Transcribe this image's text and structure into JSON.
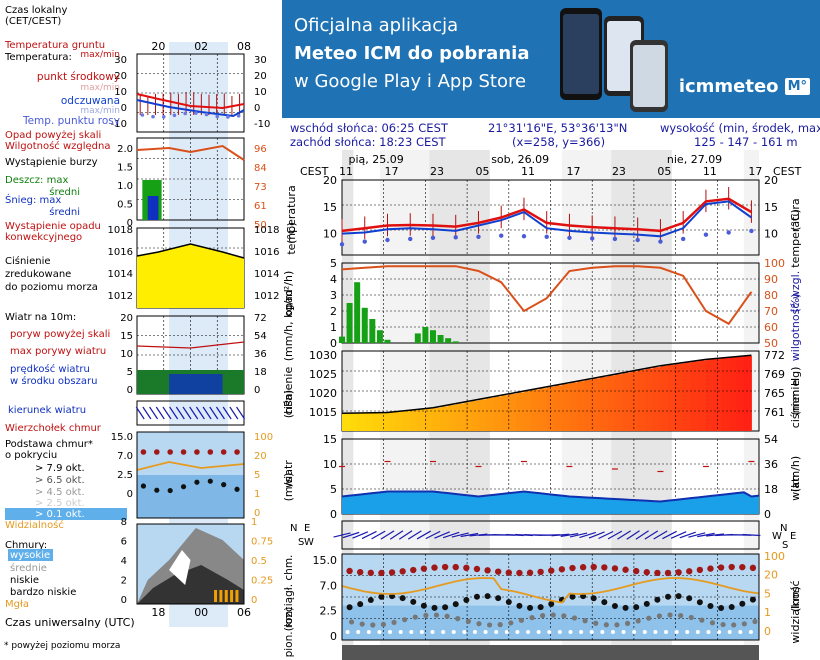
{
  "banner": {
    "line1": "Oficjalna aplikacja",
    "line2": "Meteo ICM do pobrania",
    "line3": "w Google Play i App Store",
    "logo": "icmmeteo",
    "logo_mark": "M°",
    "bg_color": "#1f72b4"
  },
  "location": {
    "sunrise": "wschód słońca: 06:25 CEST",
    "sunset": "zachód słońca: 18:23 CEST",
    "coords": "21°31'16\"E, 53°36'13\"N",
    "grid": "(x=258,  y=366)",
    "height_label": "wysokość (min, środek, max)",
    "height_values": "125 - 147 - 161 m"
  },
  "legend": {
    "local_time": "Czas lokalny\n(CET/CEST)",
    "local_ticks": [
      "20",
      "02",
      "08"
    ],
    "soil_temp": "Temperatura gruntu",
    "maxmin": "max/min",
    "temperature": "Temperatura:",
    "midpoint": "punkt środkowy",
    "temp_maxmin": "max/min",
    "feels_like": "odczuwana",
    "feels_maxmin": "max/min",
    "dew_point": "Temp. punktu rosy",
    "precip_above": "Opad powyżej skali",
    "humidity": "Wilgotność względna",
    "storm": "Wystąpienie burzy",
    "rain_max": "Deszcz: max",
    "rain_mean": "średni",
    "snow_max": "Śnieg: max",
    "snow_mean": "średni",
    "conv_precip": "Wystąpienie opadu\nkonwekcyjnego",
    "pressure": "Ciśnienie\nzredukowane\ndo poziomu morza",
    "wind_title": "Wiatr na 10m:",
    "gust_above": "poryw powyżej skali",
    "max_gust": "max porywy wiatru",
    "wind_speed": "prędkość wiatru\nw środku obszaru",
    "wind_dir": "kierunek wiatru",
    "cloud_top": "Wierzchołek chmur",
    "cloud_base": "Podstawa chmur*\no pokryciu",
    "okt79": "> 7.9 okt.",
    "okt65": "> 6.5 okt.",
    "okt45": "> 4.5 okt.",
    "okt25": "> 2.5 okt.",
    "okt01": "> 0.1 okt.",
    "visibility": "Widzialność",
    "clouds": "Chmury:",
    "high": "wysokie",
    "mid": "średnie",
    "low": "niskie",
    "very_low": "bardzo niskie",
    "fog": "Mgła",
    "utc": "Czas uniwersalny (UTC)",
    "utc_ticks": [
      "18",
      "00",
      "06"
    ],
    "footnote": "* powyżej poziomu morza",
    "temp_left_ticks": [
      "30",
      "20",
      "10",
      "0",
      "-10"
    ],
    "temp_right_ticks": [
      "30",
      "20",
      "10",
      "0",
      "-10"
    ],
    "precip_left_ticks": [
      "2.0",
      "1.5",
      "1.0",
      "0.5",
      "0"
    ],
    "precip_right_ticks": [
      "96",
      "84",
      "73",
      "61",
      "50"
    ],
    "pres_left_ticks": [
      "1018",
      "1016",
      "1014",
      "1012"
    ],
    "pres_right_ticks": [
      "1018",
      "1016",
      "1014",
      "1012"
    ],
    "wind_left_ticks": [
      "20",
      "15",
      "10",
      "5",
      "0"
    ],
    "wind_right_ticks": [
      "72",
      "54",
      "36",
      "18",
      "0"
    ],
    "cb_left_ticks": [
      "15.0",
      "7.0",
      "2.5",
      "0"
    ],
    "cb_right_ticks": [
      "100",
      "20",
      "5",
      "1",
      "0"
    ],
    "cl_left_ticks": [
      "8",
      "6",
      "4",
      "2",
      "0"
    ],
    "cl_right_ticks": [
      "1",
      "0.75",
      "0.5",
      "0.25",
      "0"
    ]
  },
  "main": {
    "tz_left": "CEST",
    "tz_right": "CEST",
    "days": [
      "pią, 25.09",
      "sob, 26.09",
      "nie, 27.09"
    ],
    "hour_ticks": [
      "11",
      "17",
      "23",
      "05",
      "11",
      "17",
      "23",
      "05",
      "11",
      "17"
    ],
    "temp_label": "temperatura\n(°C)",
    "temp_label_r": "(°C)\ntemperatura",
    "temp_ticks": [
      "20",
      "15",
      "10"
    ],
    "precip_label": "opad\n(mm/h, kg/m²/h)",
    "rh_label": "(%)\nwilgotność wzgl.",
    "precip_ticks": [
      "5",
      "4",
      "3",
      "2",
      "1",
      "0"
    ],
    "rh_ticks": [
      "100",
      "90",
      "80",
      "70",
      "60",
      "50"
    ],
    "pres_label": "ciśnienie\n(hPa)",
    "pres_label_r": "(mm Hg)\nciśnienie",
    "pres_ticks": [
      "1030",
      "1025",
      "1020",
      "1015"
    ],
    "pres_ticks_r": [
      "772",
      "769",
      "765",
      "761"
    ],
    "wind_label": "wiatr\n(m/s)",
    "wind_label_r": "(km/h)\nwiatr",
    "wind_ticks": [
      "15",
      "10",
      "5",
      "0"
    ],
    "wind_ticks_r": [
      "54",
      "36",
      "18",
      "0"
    ],
    "cloud_label": "pion. rozciągł. chm.\n(km)",
    "vis_label": "(km)\nwidzialność",
    "cloud_ticks": [
      "15.0",
      "7.0",
      "2.5",
      "0"
    ],
    "vis_ticks": [
      "100",
      "20",
      "5",
      "1",
      "0"
    ],
    "compass": [
      "N",
      "W",
      "S",
      "E"
    ]
  },
  "chart_data": [
    {
      "type": "line",
      "title": "temperatura",
      "ylabel": "(°C)",
      "ylim": [
        6,
        20
      ],
      "x_hours": [
        0,
        3,
        6,
        9,
        12,
        15,
        18,
        21,
        24,
        27,
        30,
        33,
        36,
        39,
        42,
        45,
        48,
        51,
        54
      ],
      "series": [
        {
          "name": "temperatura",
          "values": [
            10.5,
            11,
            11.5,
            11.6,
            11.5,
            11.3,
            12,
            13,
            14.5,
            12,
            11.5,
            11.2,
            11,
            10.8,
            10.5,
            12,
            16,
            16.5,
            14
          ]
        },
        {
          "name": "odczuwana",
          "values": [
            10,
            10.2,
            10.8,
            11,
            10.8,
            10.5,
            11.5,
            12.5,
            14,
            11,
            10.5,
            10.2,
            10,
            9.8,
            9.5,
            11,
            15.5,
            16,
            13
          ]
        },
        {
          "name": "punkt rosy",
          "values": [
            8,
            8.5,
            8.8,
            9,
            9.2,
            9.3,
            9.4,
            9.6,
            9.5,
            9.4,
            9.2,
            9.1,
            9,
            8.8,
            8.5,
            9,
            9.8,
            10.2,
            10.5
          ]
        }
      ]
    },
    {
      "type": "line",
      "title": "ciśnienie",
      "ylabel": "(hPa)",
      "ylim": [
        1012,
        1031
      ],
      "x_hours": [
        0,
        6,
        12,
        18,
        24,
        30,
        36,
        42,
        48,
        54
      ],
      "values": [
        1016.2,
        1016.4,
        1017.5,
        1019.5,
        1021.5,
        1023.5,
        1025.5,
        1027.5,
        1029,
        1030
      ]
    },
    {
      "type": "line",
      "title": "wilgotność wzgl.",
      "ylabel": "(%)",
      "ylim": [
        50,
        100
      ],
      "x_hours": [
        0,
        3,
        6,
        9,
        12,
        15,
        18,
        21,
        24,
        27,
        30,
        33,
        36,
        39,
        42,
        45,
        48,
        51,
        54
      ],
      "values": [
        96,
        97,
        98,
        98,
        98,
        98,
        95,
        88,
        70,
        78,
        95,
        97,
        98,
        98,
        97,
        92,
        70,
        62,
        82
      ]
    },
    {
      "type": "bar",
      "title": "opad",
      "ylabel": "(mm/h, kg/m²/h)",
      "ylim": [
        0,
        5
      ],
      "x_hours": [
        0,
        1,
        2,
        3,
        4,
        5,
        6,
        7,
        8,
        9,
        10,
        11,
        12,
        13,
        14,
        15,
        16,
        17,
        18
      ],
      "values": [
        0.4,
        2.5,
        3.8,
        2.2,
        1.5,
        0.8,
        0.2,
        0,
        0,
        0,
        0.6,
        1.0,
        0.8,
        0.5,
        0.3,
        0.1,
        0,
        0,
        0
      ]
    },
    {
      "type": "line",
      "title": "wiatr",
      "ylabel": "(m/s)",
      "ylim": [
        0,
        15
      ],
      "x_hours": [
        0,
        6,
        12,
        18,
        24,
        30,
        36,
        42,
        48,
        54
      ],
      "values": [
        3.5,
        4.5,
        4.5,
        3.5,
        4.5,
        3.5,
        3,
        2.5,
        3.5,
        4.5
      ]
    }
  ]
}
